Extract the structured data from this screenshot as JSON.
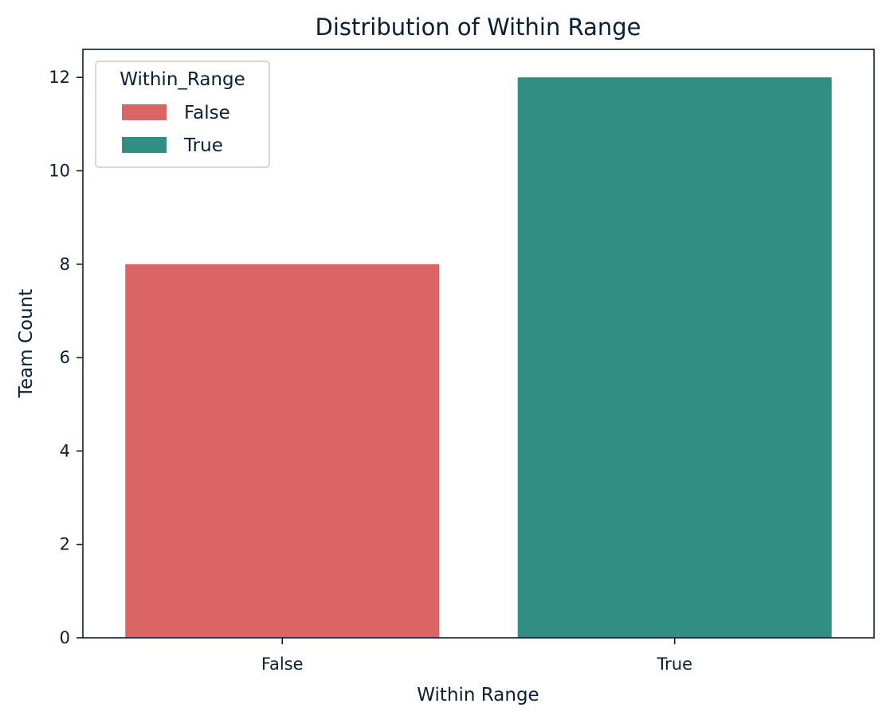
{
  "chart_data": {
    "type": "bar",
    "title": "Distribution of Within Range",
    "xlabel": "Within Range",
    "ylabel": "Team Count",
    "categories": [
      "False",
      "True"
    ],
    "values": [
      8,
      12
    ],
    "colors": [
      "#db6464",
      "#318e83"
    ],
    "ylim": [
      0,
      12.6
    ],
    "yticks": [
      0,
      2,
      4,
      6,
      8,
      10,
      12
    ],
    "legend": {
      "title": "Within_Range",
      "placement": "top-left",
      "entries": [
        {
          "label": "False",
          "color": "#db6464"
        },
        {
          "label": "True",
          "color": "#318e83"
        }
      ]
    },
    "grid": false
  }
}
